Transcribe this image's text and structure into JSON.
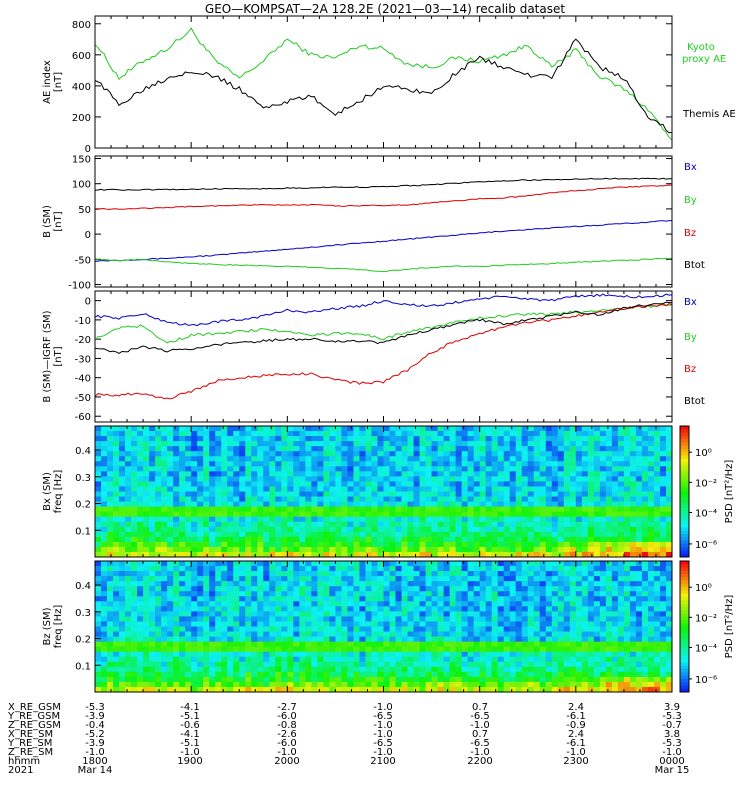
{
  "title": "GEO—KOMPSAT—2A 128.2E (2021—03—14) recalib dataset",
  "colors": {
    "black": "#000000",
    "green": "#22cc22",
    "blue": "#0000cc",
    "red": "#dd0000"
  },
  "chart_data": [
    {
      "type": "line",
      "ylabel_lines": [
        "AE index",
        "[nT]"
      ],
      "ylim": [
        0,
        850
      ],
      "yticks": [
        0,
        200,
        400,
        600,
        800
      ],
      "x": [
        18.0,
        18.25,
        18.5,
        18.75,
        19.0,
        19.25,
        19.5,
        19.75,
        20.0,
        20.25,
        20.5,
        20.75,
        21.0,
        21.25,
        21.5,
        21.75,
        22.0,
        22.25,
        22.5,
        22.75,
        23.0,
        23.25,
        23.5,
        23.75,
        24.0
      ],
      "series": [
        {
          "name": "Kyoto proxy AE",
          "label_lines": [
            "Kyoto",
            "proxy AE"
          ],
          "color": "#22cc22",
          "values": [
            680,
            450,
            560,
            640,
            760,
            560,
            450,
            560,
            700,
            600,
            580,
            660,
            640,
            540,
            520,
            580,
            560,
            600,
            660,
            520,
            630,
            460,
            380,
            250,
            50
          ]
        },
        {
          "name": "Themis AE",
          "label_lines": [
            "Themis AE"
          ],
          "color": "#000000",
          "values": [
            450,
            280,
            380,
            450,
            500,
            460,
            380,
            260,
            300,
            330,
            220,
            300,
            400,
            380,
            350,
            480,
            580,
            520,
            470,
            450,
            700,
            520,
            450,
            200,
            100
          ]
        }
      ]
    },
    {
      "type": "line",
      "ylabel_lines": [
        "B (SM)",
        "[nT]"
      ],
      "ylim": [
        -105,
        155
      ],
      "yticks": [
        -100,
        -50,
        0,
        50,
        100,
        150
      ],
      "x": [
        18.0,
        18.25,
        18.5,
        18.75,
        19.0,
        19.25,
        19.5,
        19.75,
        20.0,
        20.25,
        20.5,
        20.75,
        21.0,
        21.25,
        21.5,
        21.75,
        22.0,
        22.25,
        22.5,
        22.75,
        23.0,
        23.25,
        23.5,
        23.75,
        24.0
      ],
      "series": [
        {
          "name": "Bx",
          "color": "#0000cc",
          "values": [
            -53,
            -52,
            -50,
            -48,
            -45,
            -42,
            -38,
            -34,
            -30,
            -26,
            -22,
            -18,
            -14,
            -10,
            -6,
            -2,
            2,
            6,
            9,
            12,
            15,
            18,
            21,
            24,
            27
          ]
        },
        {
          "name": "By",
          "color": "#22cc22",
          "values": [
            -50,
            -52,
            -50,
            -55,
            -58,
            -60,
            -62,
            -63,
            -64,
            -66,
            -68,
            -70,
            -74,
            -70,
            -66,
            -64,
            -64,
            -62,
            -60,
            -58,
            -56,
            -54,
            -52,
            -50,
            -48
          ]
        },
        {
          "name": "Bz",
          "color": "#dd0000",
          "values": [
            50,
            50,
            51,
            53,
            55,
            56,
            57,
            58,
            58,
            58,
            56,
            56,
            57,
            58,
            62,
            66,
            70,
            72,
            76,
            82,
            86,
            90,
            93,
            95,
            97
          ]
        },
        {
          "name": "Btot",
          "color": "#000000",
          "values": [
            88,
            88,
            88,
            88,
            89,
            90,
            90,
            90,
            91,
            92,
            93,
            93,
            94,
            96,
            98,
            101,
            104,
            106,
            107,
            108,
            109,
            110,
            110,
            110,
            110
          ]
        }
      ]
    },
    {
      "type": "line",
      "ylabel_lines": [
        "B (SM)—IGRF (SM)",
        "[nT]"
      ],
      "ylim": [
        -63,
        5
      ],
      "yticks": [
        -60,
        -50,
        -40,
        -30,
        -20,
        -10,
        0
      ],
      "x": [
        18.0,
        18.25,
        18.5,
        18.75,
        19.0,
        19.25,
        19.5,
        19.75,
        20.0,
        20.25,
        20.5,
        20.75,
        21.0,
        21.25,
        21.5,
        21.75,
        22.0,
        22.25,
        22.5,
        22.75,
        23.0,
        23.25,
        23.5,
        23.75,
        24.0
      ],
      "series": [
        {
          "name": "Bx",
          "color": "#0000cc",
          "values": [
            -8,
            -9,
            -7,
            -11,
            -13,
            -11,
            -10,
            -8,
            -5,
            -6,
            -4,
            -3,
            0,
            -2,
            -3,
            -1,
            1,
            2,
            1,
            0,
            2,
            3,
            2,
            2,
            3
          ]
        },
        {
          "name": "By",
          "color": "#22cc22",
          "values": [
            -20,
            -14,
            -13,
            -22,
            -18,
            -17,
            -16,
            -15,
            -16,
            -18,
            -17,
            -17,
            -20,
            -16,
            -14,
            -11,
            -9,
            -8,
            -7,
            -7,
            -6,
            -5,
            -4,
            -3,
            -2
          ]
        },
        {
          "name": "Bz",
          "color": "#dd0000",
          "values": [
            -49,
            -49,
            -48,
            -51,
            -47,
            -42,
            -40,
            -39,
            -38,
            -38,
            -41,
            -43,
            -42,
            -36,
            -27,
            -21,
            -17,
            -14,
            -11,
            -10,
            -8,
            -6,
            -4,
            -3,
            -2
          ]
        },
        {
          "name": "Btot",
          "color": "#000000",
          "values": [
            -24,
            -27,
            -24,
            -26,
            -25,
            -23,
            -22,
            -21,
            -20,
            -20,
            -21,
            -21,
            -22,
            -18,
            -15,
            -12,
            -10,
            -12,
            -10,
            -8,
            -6,
            -7,
            -4,
            -2,
            -1
          ]
        }
      ]
    },
    {
      "type": "heatmap",
      "ylabel_lines": [
        "Bx (SM)",
        "freq [Hz]"
      ],
      "ylim": [
        0,
        0.49
      ],
      "yticks": [
        0.1,
        0.2,
        0.3,
        0.4
      ],
      "colorbar_label": "PSD [nT²/Hz]",
      "colorbar_ticks": [
        "10⁰",
        "10⁻²",
        "10⁻⁴",
        "10⁻⁶"
      ],
      "line_freq": 0.168
    },
    {
      "type": "heatmap",
      "ylabel_lines": [
        "Bz (SM)",
        "freq [Hz]"
      ],
      "ylim": [
        0,
        0.49
      ],
      "yticks": [
        0.1,
        0.2,
        0.3,
        0.4
      ],
      "colorbar_label": "PSD [nT²/Hz]",
      "colorbar_ticks": [
        "10⁰",
        "10⁻²",
        "10⁻⁴",
        "10⁻⁶"
      ],
      "line_freq": 0.168
    }
  ],
  "ephemeris": {
    "rows": [
      {
        "label": "X_RE_GSM",
        "values": [
          "-5.3",
          "-4.1",
          "-2.7",
          "-1.0",
          "0.7",
          "2.4",
          "3.9"
        ]
      },
      {
        "label": "Y_RE_GSM",
        "values": [
          "-3.9",
          "-5.1",
          "-6.0",
          "-6.5",
          "-6.5",
          "-6.1",
          "-5.3"
        ]
      },
      {
        "label": "Z_RE_GSM",
        "values": [
          "-0.4",
          "-0.6",
          "-0.8",
          "-1.0",
          "-1.0",
          "-0.9",
          "-0.7"
        ]
      },
      {
        "label": "X_RE_SM",
        "values": [
          "-5.2",
          "-4.1",
          "-2.6",
          "-1.0",
          "0.7",
          "2.4",
          "3.8"
        ]
      },
      {
        "label": "Y_RE_SM",
        "values": [
          "-3.9",
          "-5.1",
          "-6.0",
          "-6.5",
          "-6.5",
          "-6.1",
          "-5.3"
        ]
      },
      {
        "label": "Z_RE_SM",
        "values": [
          "-1.0",
          "-1.0",
          "-1.0",
          "-1.0",
          "-1.0",
          "-1.0",
          "-1.0"
        ]
      },
      {
        "label": "hhmm",
        "values": [
          "1800",
          "1900",
          "2000",
          "2100",
          "2200",
          "2300",
          "0000"
        ]
      },
      {
        "label": "2021",
        "values": [
          "Mar 14",
          "",
          "",
          "",
          "",
          "",
          "Mar 15"
        ]
      }
    ]
  }
}
